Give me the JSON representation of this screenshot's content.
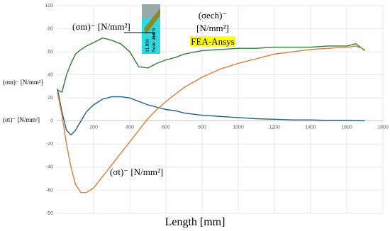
{
  "chart_data": {
    "type": "line",
    "x_label": "Length [mm]",
    "xlim": [
      0,
      1800
    ],
    "xticks": [
      200,
      400,
      600,
      800,
      1000,
      1200,
      1400,
      1600,
      1800
    ],
    "ylim": [
      -80,
      100
    ],
    "yticks": [
      -80,
      -60,
      -40,
      -20,
      0,
      20,
      40,
      60,
      80,
      100
    ],
    "grid": true,
    "x": [
      0,
      25,
      50,
      75,
      100,
      130,
      160,
      200,
      250,
      300,
      350,
      400,
      450,
      500,
      550,
      600,
      650,
      700,
      800,
      900,
      1000,
      1100,
      1200,
      1300,
      1400,
      1500,
      1600,
      1650,
      1700
    ],
    "series": [
      {
        "name": "(σm)⁻ [N/mm²]",
        "color": "#2e7d32",
        "values": [
          27,
          25,
          40,
          50,
          58,
          62,
          65,
          68,
          72,
          70,
          67,
          60,
          47,
          46,
          50,
          53,
          55,
          58,
          61,
          62,
          63,
          63,
          64,
          64,
          64,
          65,
          65,
          67,
          61
        ]
      },
      {
        "name": "(σt)⁻ [N/mm²]",
        "color": "#1f5f8b",
        "values": [
          28,
          8,
          -8,
          -12,
          -8,
          0,
          8,
          14,
          19,
          21,
          21,
          20,
          17,
          14,
          12,
          10,
          9,
          7,
          5,
          4,
          3,
          2,
          1.5,
          1,
          1,
          0.5,
          0.5,
          0.3,
          0.2
        ]
      },
      {
        "name": "(σech)⁻",
        "color": "#e07b39",
        "values": [
          25,
          5,
          -20,
          -40,
          -55,
          -62,
          -62,
          -58,
          -48,
          -38,
          -28,
          -18,
          -8,
          2,
          10,
          17,
          23,
          29,
          38,
          45,
          50,
          54,
          58,
          60,
          62,
          63,
          64,
          65,
          62
        ]
      }
    ],
    "annotations": {
      "sigma_m": "(σm)⁻ [N/mm²]",
      "sigma_ech": "(σech)⁻",
      "sigma_ech_unit": "[N/mm²]",
      "fea": "FEA-Ansys",
      "sigma_t": "(σt)⁻ [N/mm²]",
      "inset_value": "91.896",
      "inset_node": "Node 21403"
    }
  }
}
